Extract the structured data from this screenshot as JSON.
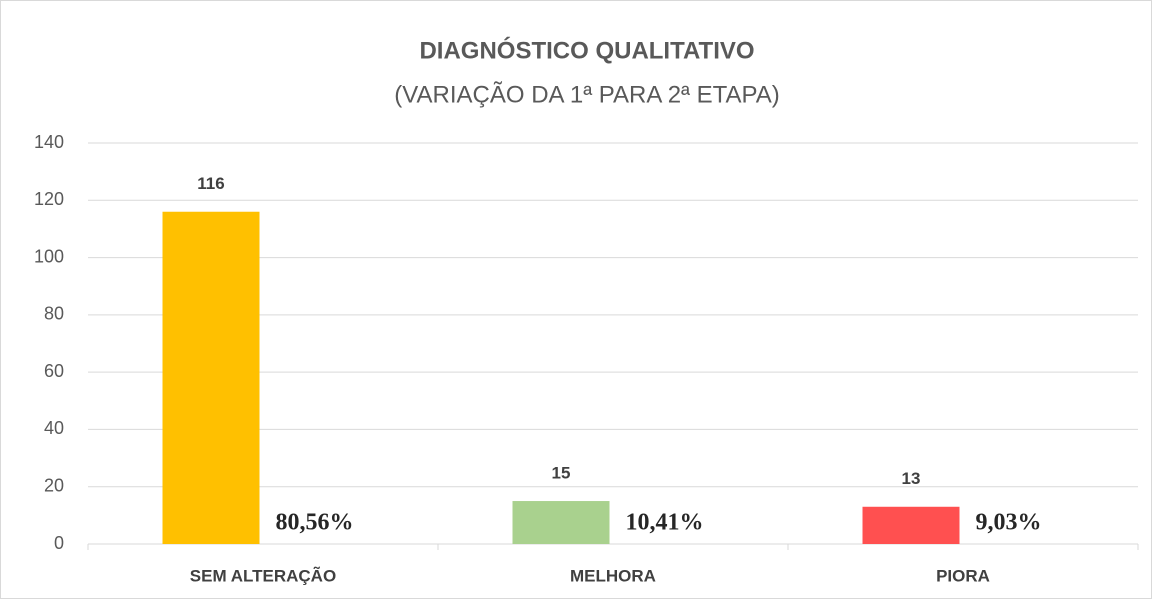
{
  "chart_data": {
    "type": "bar",
    "title": "DIAGNÓSTICO QUALITATIVO",
    "subtitle": "(VARIAÇÃO DA 1ª PARA 2ª ETAPA)",
    "categories": [
      "SEM ALTERAÇÃO",
      "MELHORA",
      "PIORA"
    ],
    "values": [
      116,
      15,
      13
    ],
    "colors": [
      "#ffc000",
      "#a9d18e",
      "#ff5050"
    ],
    "annotations": [
      "80,56%",
      "10,41%",
      "9,03%"
    ],
    "ylim": [
      0,
      140
    ],
    "yticks": [
      0,
      20,
      40,
      60,
      80,
      100,
      120,
      140
    ],
    "grid": true
  }
}
